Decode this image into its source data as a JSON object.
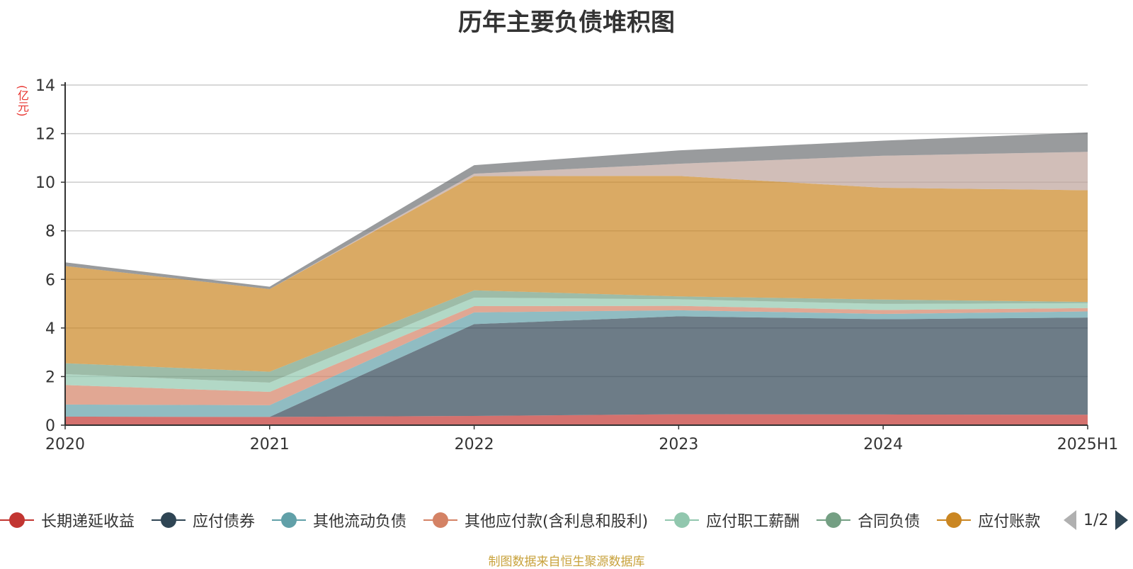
{
  "chart_data": {
    "type": "area",
    "title": "历年主要负债堆积图",
    "y_unit": "(亿元)",
    "categories": [
      "2020",
      "2021",
      "2022",
      "2023",
      "2024",
      "2025H1"
    ],
    "ylim": [
      0,
      14
    ],
    "yticks": [
      "0",
      "2",
      "4",
      "6",
      "8",
      "10",
      "12",
      "14"
    ],
    "grid": true,
    "stacked": true,
    "legend": {
      "position": "bottom",
      "page": "1/2"
    },
    "series": [
      {
        "name": "长期递延收益",
        "color": "#c23531",
        "values": [
          0.35,
          0.34,
          0.38,
          0.45,
          0.44,
          0.43
        ]
      },
      {
        "name": "应付债券",
        "color": "#2f4554",
        "values": [
          0.0,
          0.0,
          3.78,
          4.03,
          3.92,
          4.0
        ]
      },
      {
        "name": "其他流动负债",
        "color": "#61a0a8",
        "values": [
          0.5,
          0.48,
          0.48,
          0.25,
          0.22,
          0.25
        ]
      },
      {
        "name": "其他应付款(含利息和股利)",
        "color": "#d48265",
        "values": [
          0.8,
          0.55,
          0.26,
          0.18,
          0.16,
          0.14
        ]
      },
      {
        "name": "应付职工薪酬",
        "color": "#91c7ae",
        "values": [
          0.45,
          0.38,
          0.35,
          0.27,
          0.25,
          0.2
        ]
      },
      {
        "name": "合同负债",
        "color": "#749f83",
        "values": [
          0.45,
          0.45,
          0.3,
          0.12,
          0.18,
          0.05
        ]
      },
      {
        "name": "应付账款",
        "color": "#ca8622",
        "values": [
          4.0,
          3.4,
          4.7,
          4.96,
          4.6,
          4.6
        ]
      },
      {
        "name": "",
        "color": "#bda29a",
        "values": [
          0.0,
          0.0,
          0.1,
          0.5,
          1.32,
          1.58
        ]
      },
      {
        "name": "",
        "color": "#6e7074",
        "values": [
          0.15,
          0.1,
          0.35,
          0.55,
          0.62,
          0.8
        ]
      }
    ]
  },
  "legend_items": [
    {
      "label": "长期递延收益",
      "color": "#c23531"
    },
    {
      "label": "应付债券",
      "color": "#2f4554"
    },
    {
      "label": "其他流动负债",
      "color": "#61a0a8"
    },
    {
      "label": "其他应付款(含利息和股利)",
      "color": "#d48265"
    },
    {
      "label": "应付职工薪酬",
      "color": "#91c7ae"
    },
    {
      "label": "合同负债",
      "color": "#749f83"
    },
    {
      "label": "应付账款",
      "color": "#ca8622"
    }
  ],
  "pager": {
    "text": "1/2"
  },
  "source_note": "制图数据来自恒生聚源数据库"
}
